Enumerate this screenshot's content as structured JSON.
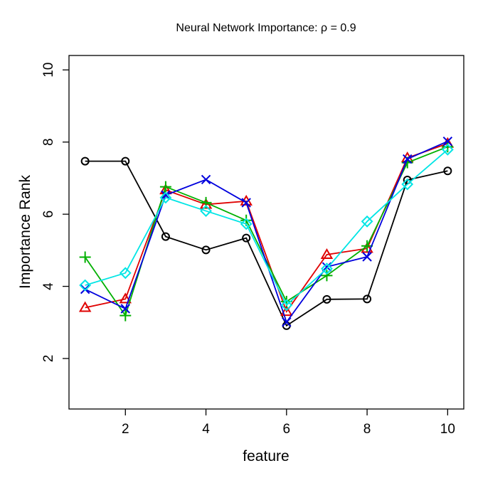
{
  "chart_data": {
    "type": "line",
    "title": "Neural Network Importance: ρ = 0.9",
    "xlabel": "feature",
    "ylabel": "Importance Rank",
    "xlim": [
      0.6,
      10.4
    ],
    "ylim": [
      0.6,
      10.4
    ],
    "x": [
      1,
      2,
      3,
      4,
      5,
      6,
      7,
      8,
      9,
      10
    ],
    "xticks": [
      2,
      4,
      6,
      8,
      10
    ],
    "yticks": [
      2,
      4,
      6,
      8,
      10
    ],
    "grid": false,
    "legend": "none",
    "series": [
      {
        "marker": "circle",
        "color": "#000000",
        "values": [
          7.47,
          7.47,
          5.38,
          5.01,
          5.34,
          2.91,
          3.64,
          3.65,
          6.95,
          7.2
        ]
      },
      {
        "marker": "triangle",
        "color": "#DF0000",
        "values": [
          3.41,
          3.65,
          6.67,
          6.27,
          6.36,
          3.3,
          4.88,
          5.05,
          7.56,
          7.96
        ]
      },
      {
        "marker": "plus",
        "color": "#00B000",
        "values": [
          4.81,
          3.19,
          6.76,
          6.32,
          5.83,
          3.58,
          4.3,
          5.12,
          7.43,
          7.87
        ]
      },
      {
        "marker": "x",
        "color": "#0000DD",
        "values": [
          3.92,
          3.38,
          6.53,
          6.96,
          6.32,
          3.01,
          4.54,
          4.82,
          7.53,
          8.02
        ]
      },
      {
        "marker": "diamond",
        "color": "#00E5E5",
        "values": [
          4.03,
          4.37,
          6.46,
          6.09,
          5.73,
          3.48,
          4.49,
          5.8,
          6.83,
          7.79
        ]
      }
    ]
  }
}
